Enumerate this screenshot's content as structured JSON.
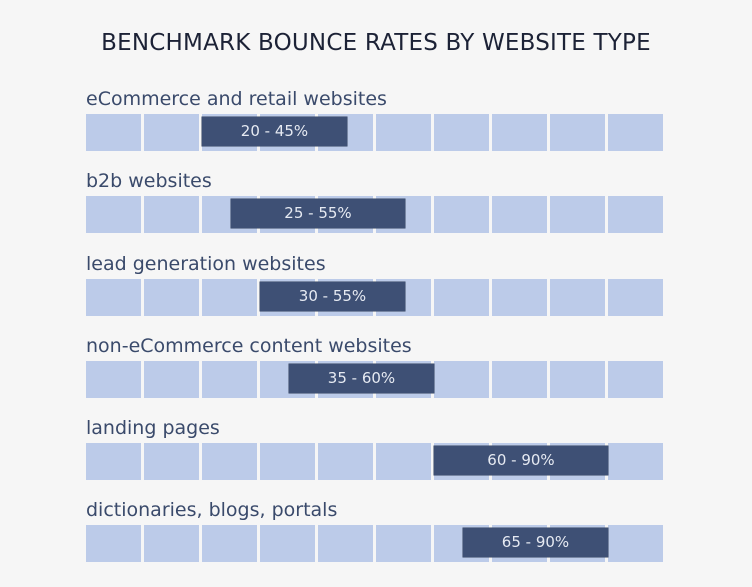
{
  "title": "BENCHMARK BOUNCE RATES BY WEBSITE TYPE",
  "colors": {
    "background": "#f6f6f6",
    "cell": "#bccbe9",
    "bar": "#3e5075",
    "bar_text": "#e6eaf2",
    "label_text": "#3a4a6b",
    "title_text": "#1c2236"
  },
  "grid": {
    "cells_per_row": 10,
    "percent_per_cell": 10
  },
  "rows": [
    {
      "label": "eCommerce and retail websites",
      "range_label": "20 - 45%",
      "low": 20,
      "high": 45
    },
    {
      "label": "b2b websites",
      "range_label": "25 - 55%",
      "low": 25,
      "high": 55
    },
    {
      "label": "lead generation websites",
      "range_label": "30 - 55%",
      "low": 30,
      "high": 55
    },
    {
      "label": "non-eCommerce content websites",
      "range_label": "35 - 60%",
      "low": 35,
      "high": 60
    },
    {
      "label": "landing pages",
      "range_label": "60 - 90%",
      "low": 60,
      "high": 90
    },
    {
      "label": "dictionaries, blogs, portals",
      "range_label": "65 - 90%",
      "low": 65,
      "high": 90
    }
  ],
  "chart_data": {
    "type": "bar",
    "subtype": "range (floating horizontal bars)",
    "title": "BENCHMARK BOUNCE RATES BY WEBSITE TYPE",
    "categories": [
      "eCommerce and retail websites",
      "b2b websites",
      "lead generation websites",
      "non-eCommerce content websites",
      "landing pages",
      "dictionaries, blogs, portals"
    ],
    "series": [
      {
        "name": "low",
        "values": [
          20,
          25,
          30,
          35,
          60,
          65
        ]
      },
      {
        "name": "high",
        "values": [
          45,
          55,
          55,
          60,
          90,
          90
        ]
      }
    ],
    "data_labels": [
      "20 - 45%",
      "25 - 55%",
      "30 - 55%",
      "35 - 60%",
      "60 - 90%",
      "65 - 90%"
    ],
    "xlabel": "",
    "ylabel": "",
    "xlim": [
      0,
      100
    ],
    "unit": "%",
    "grid": "10 segmented cells per row (10% each), no axis ticks shown",
    "legend": "none",
    "orientation": "horizontal"
  }
}
